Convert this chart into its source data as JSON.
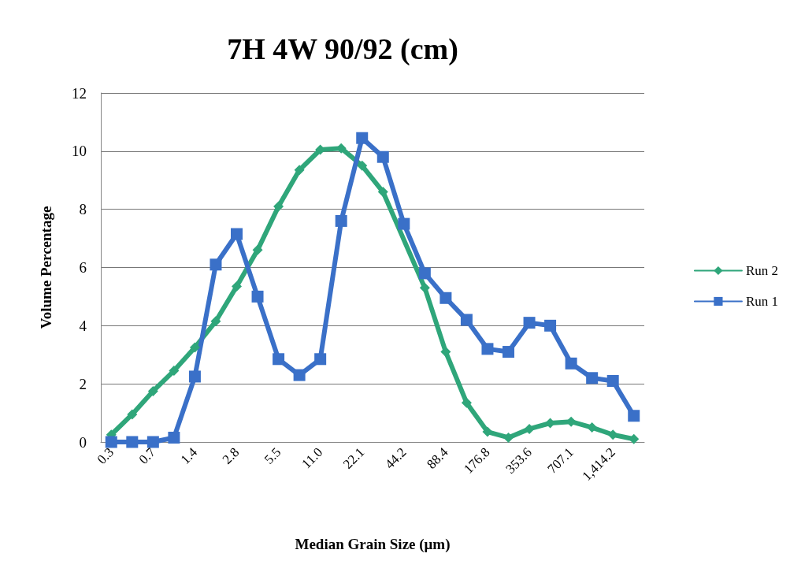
{
  "chart_data": {
    "type": "line",
    "title": "7H 4W 90/92 (cm)",
    "xlabel": "Median Grain Size (μm)",
    "ylabel": "Volume Percentage",
    "categories": [
      "0.3",
      null,
      "0.7",
      null,
      "1.4",
      null,
      "2.8",
      null,
      "5.5",
      null,
      "11.0",
      null,
      "22.1",
      null,
      "44.2",
      null,
      "88.4",
      null,
      "176.8",
      null,
      "353.6",
      null,
      "707.1",
      null,
      "1,414.2",
      null
    ],
    "series": [
      {
        "name": "Run 2",
        "color": "#2fa67a",
        "marker": "diamond",
        "values": [
          0.25,
          0.95,
          1.75,
          2.45,
          3.25,
          4.15,
          5.35,
          6.6,
          8.1,
          9.35,
          10.05,
          10.1,
          9.5,
          8.6,
          null,
          5.3,
          3.1,
          1.35,
          0.35,
          0.15,
          0.45,
          0.65,
          0.7,
          0.5,
          0.25,
          0.1
        ]
      },
      {
        "name": "Run 1",
        "color": "#3a70c8",
        "marker": "square",
        "values": [
          0,
          0,
          0,
          0.15,
          2.25,
          6.1,
          7.15,
          5.0,
          2.85,
          2.3,
          2.85,
          7.6,
          10.45,
          9.8,
          7.5,
          5.8,
          4.95,
          4.2,
          3.2,
          3.1,
          4.1,
          4.0,
          2.7,
          2.2,
          2.1,
          0.9
        ]
      }
    ],
    "ylim": [
      0,
      12
    ],
    "yticks": [
      0,
      2,
      4,
      6,
      8,
      10,
      12
    ],
    "grid": "y",
    "legend": "right",
    "line_style": "solid"
  }
}
